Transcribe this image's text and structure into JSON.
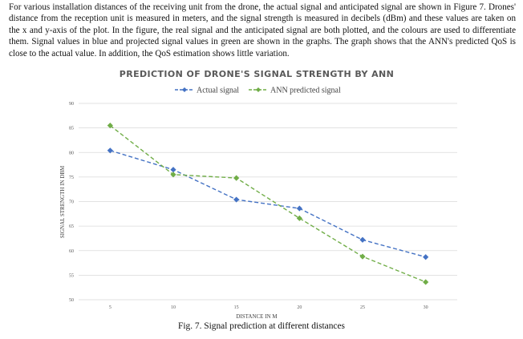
{
  "paragraph": "For various installation distances of the receiving unit from the drone, the actual signal and anticipated signal are shown in Figure 7. Drones' distance from the reception unit is measured in meters, and the signal strength is measured in decibels (dBm) and these values are taken on the x and y-axis of the plot. In the figure, the real signal and the anticipated signal are both plotted, and the colours are used to differentiate them. Signal values in blue and projected signal values in green are shown in the graphs. The graph shows that the ANN's predicted QoS is close to the actual value. In addition, the QoS estimation shows little variation.",
  "caption": "Fig. 7. Signal prediction at different distances",
  "chart_data": {
    "type": "line",
    "title": "PREDICTION OF DRONE'S SIGNAL STRENGTH BY ANN",
    "xlabel": "DISTANCE IN M",
    "ylabel": "SIGNAL STRENGTH IN DBM",
    "x": [
      5,
      10,
      15,
      20,
      25,
      30
    ],
    "ylim": [
      50,
      90
    ],
    "yticks": [
      50,
      55,
      60,
      65,
      70,
      75,
      80,
      85,
      90
    ],
    "grid": "horizontal",
    "legend": "top",
    "series": [
      {
        "name": "Actual signal",
        "values": [
          80.4,
          76.5,
          70.4,
          68.6,
          62.2,
          58.7
        ],
        "color": "#4472C4",
        "marker": "diamond"
      },
      {
        "name": "ANN predicted signal",
        "values": [
          85.5,
          75.5,
          74.8,
          66.6,
          58.8,
          53.6
        ],
        "color": "#70AD47",
        "marker": "diamond"
      }
    ]
  }
}
